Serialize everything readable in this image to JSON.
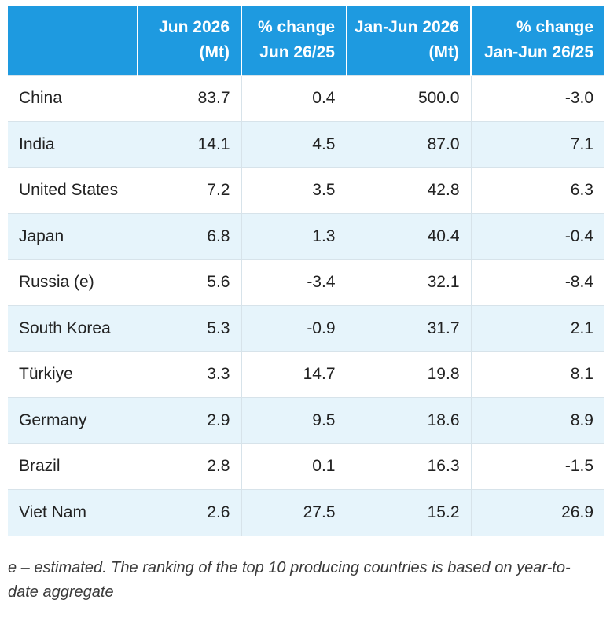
{
  "table": {
    "headers": [
      {
        "line1": "",
        "line2": ""
      },
      {
        "line1": "Jun 2026",
        "line2": "(Mt)"
      },
      {
        "line1": "% change",
        "line2": "Jun 26/25"
      },
      {
        "line1": "Jan-Jun 2026",
        "line2": "(Mt)"
      },
      {
        "line1": "% change",
        "line2": "Jan-Jun 26/25"
      }
    ],
    "rows": [
      [
        "China",
        "83.7",
        "0.4",
        "500.0",
        "-3.0"
      ],
      [
        "India",
        "14.1",
        "4.5",
        "87.0",
        "7.1"
      ],
      [
        "United States",
        "7.2",
        "3.5",
        "42.8",
        "6.3"
      ],
      [
        "Japan",
        "6.8",
        "1.3",
        "40.4",
        "-0.4"
      ],
      [
        "Russia (e)",
        "5.6",
        "-3.4",
        "32.1",
        "-8.4"
      ],
      [
        "South Korea",
        "5.3",
        "-0.9",
        "31.7",
        "2.1"
      ],
      [
        "Türkiye",
        "3.3",
        "14.7",
        "19.8",
        "8.1"
      ],
      [
        "Germany",
        "2.9",
        "9.5",
        "18.6",
        "8.9"
      ],
      [
        "Brazil",
        "2.8",
        "0.1",
        "16.3",
        "-1.5"
      ],
      [
        "Viet Nam",
        "2.6",
        "27.5",
        "15.2",
        "26.9"
      ]
    ]
  },
  "footnote": "e – estimated. The ranking of the top 10 producing countries is based on year-to-date aggregate",
  "colors": {
    "header_bg": "#1e9ae0",
    "header_text": "#ffffff",
    "alt_row_bg": "#e6f4fb",
    "border": "#d7e3ea"
  }
}
